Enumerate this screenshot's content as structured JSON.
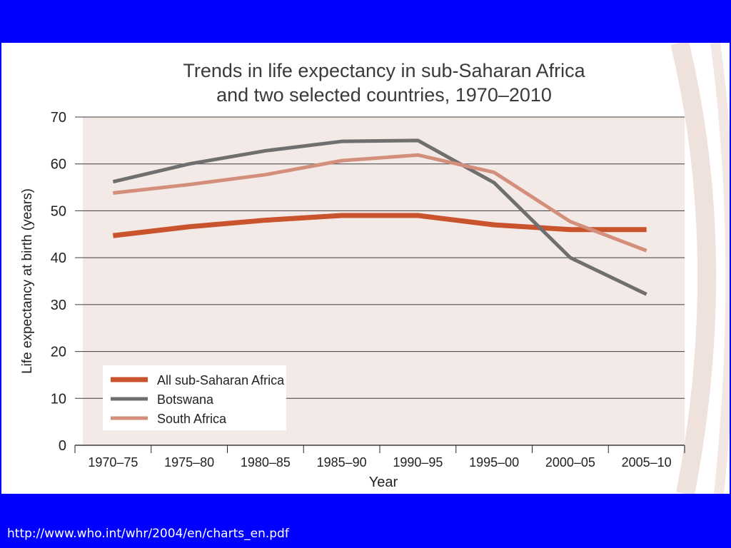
{
  "source_url": "http://www.who.int/whr/2004/en/charts_en.pdf",
  "colors": {
    "slide_frame": "#0000fe",
    "plot_background": "#f3e9e6",
    "decoration_arc": "#efe1dc",
    "gridline": "#3c3c3c"
  },
  "chart_data": {
    "type": "line",
    "title_lines": [
      "Trends in life expectancy in sub-Saharan Africa",
      "and two selected countries, 1970–2010"
    ],
    "xlabel": "Year",
    "ylabel": "Life expectancy at birth (years)",
    "categories": [
      "1970–75",
      "1975–80",
      "1980–85",
      "1985–90",
      "1990–95",
      "1995–00",
      "2000–05",
      "2005–10"
    ],
    "ylim": [
      0,
      70
    ],
    "yticks": [
      0,
      10,
      20,
      30,
      40,
      50,
      60,
      70
    ],
    "grid": true,
    "legend_position": "bottom-left",
    "series": [
      {
        "name": "All sub-Saharan Africa",
        "color": "#c8532c",
        "values": [
          44.7,
          46.6,
          48,
          49,
          49,
          47,
          46,
          46
        ]
      },
      {
        "name": "Botswana",
        "color": "#6f6f6f",
        "values": [
          56.2,
          60,
          62.8,
          64.8,
          65,
          56,
          40,
          32.2
        ]
      },
      {
        "name": "South Africa",
        "color": "#d48f7c",
        "values": [
          53.8,
          55.6,
          57.7,
          60.7,
          61.9,
          58.2,
          47.7,
          41.5
        ]
      }
    ]
  }
}
